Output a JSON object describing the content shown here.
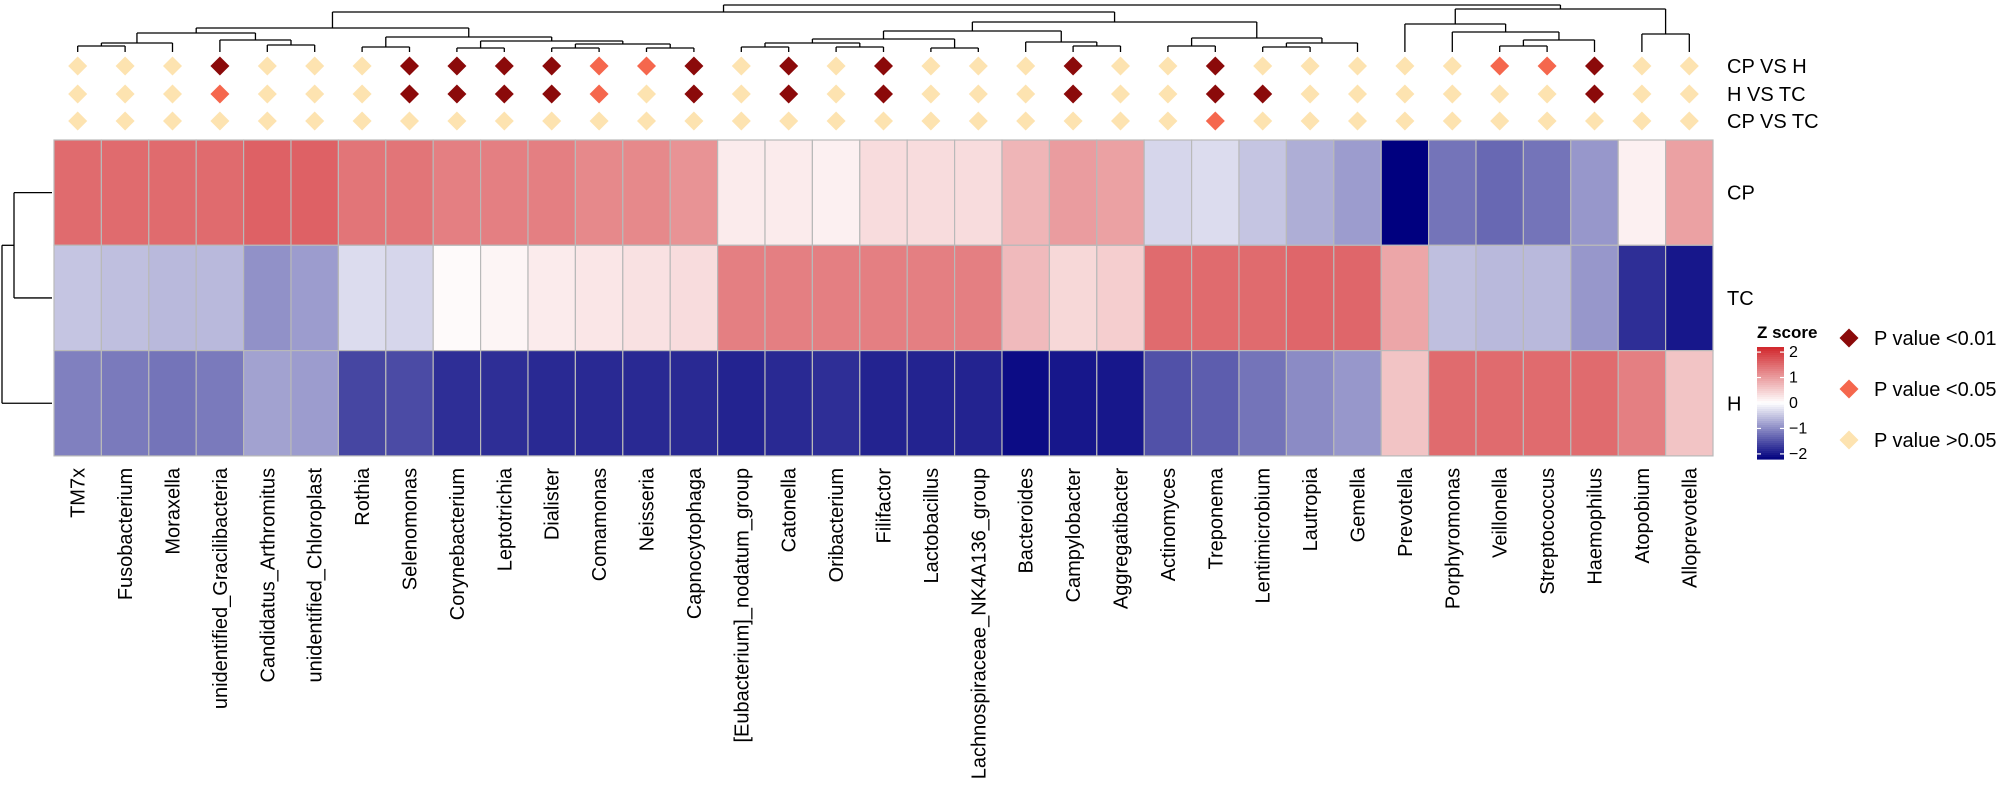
{
  "chart_data": {
    "type": "heatmap",
    "title": "",
    "columns": [
      "TM7x",
      "Fusobacterium",
      "Moraxella",
      "unidentified_Gracilibacteria",
      "Candidatus_Arthromitus",
      "unidentified_Chloroplast",
      "Rothia",
      "Selenomonas",
      "Corynebacterium",
      "Leptotrichia",
      "Dialister",
      "Comamonas",
      "Neisseria",
      "Capnocytophaga",
      "[Eubacterium]_nodatum_group",
      "Catonella",
      "Oribacterium",
      "Filifactor",
      "Lactobacillus",
      "Lachnospiraceae_NK4A136_group",
      "Bacteroides",
      "Campylobacter",
      "Aggregatibacter",
      "Actinomyces",
      "Treponema",
      "Lentimicrobium",
      "Lautropia",
      "Gemella",
      "Prevotella",
      "Porphyromonas",
      "Veillonella",
      "Streptococcus",
      "Haemophilus",
      "Atopobium",
      "Alloprevotella"
    ],
    "rows": [
      "CP",
      "TC",
      "H"
    ],
    "values": [
      [
        1.5,
        1.5,
        1.5,
        1.5,
        1.6,
        1.6,
        1.4,
        1.4,
        1.3,
        1.3,
        1.3,
        1.2,
        1.2,
        1.1,
        0.2,
        0.2,
        0.15,
        0.35,
        0.35,
        0.35,
        0.75,
        1.0,
        0.95,
        -0.35,
        -0.3,
        -0.5,
        -0.7,
        -0.85,
        -2.2,
        -1.2,
        -1.3,
        -1.2,
        -0.9,
        0.15,
        0.95
      ],
      [
        -0.5,
        -0.55,
        -0.6,
        -0.6,
        -0.95,
        -0.85,
        -0.3,
        -0.35,
        0.05,
        0.1,
        0.2,
        0.25,
        0.3,
        0.35,
        1.3,
        1.3,
        1.3,
        1.3,
        1.3,
        1.3,
        0.7,
        0.4,
        0.5,
        1.5,
        1.5,
        1.5,
        1.55,
        1.55,
        0.9,
        -0.55,
        -0.6,
        -0.6,
        -0.9,
        -1.8,
        -2.0
      ],
      [
        -1.1,
        -1.15,
        -1.2,
        -1.15,
        -0.8,
        -0.85,
        -1.6,
        -1.55,
        -1.8,
        -1.8,
        -1.85,
        -1.85,
        -1.85,
        -1.85,
        -1.9,
        -1.85,
        -1.8,
        -1.9,
        -1.9,
        -1.9,
        -2.1,
        -2.0,
        -2.0,
        -1.5,
        -1.4,
        -1.2,
        -1.0,
        -0.9,
        0.6,
        1.5,
        1.5,
        1.5,
        1.5,
        1.3,
        0.6
      ]
    ],
    "annotation_rows": [
      "CP VS H",
      "H VS TC",
      "CP VS TC"
    ],
    "annotations": [
      [
        "ns",
        "ns",
        "ns",
        "p01",
        "ns",
        "ns",
        "ns",
        "p01",
        "p01",
        "p01",
        "p01",
        "p05",
        "p05",
        "p01",
        "ns",
        "p01",
        "ns",
        "p01",
        "ns",
        "ns",
        "ns",
        "p01",
        "ns",
        "ns",
        "p01",
        "ns",
        "ns",
        "ns",
        "ns",
        "ns",
        "p05",
        "p05",
        "p01",
        "ns",
        "ns"
      ],
      [
        "ns",
        "ns",
        "ns",
        "p05",
        "ns",
        "ns",
        "ns",
        "p01",
        "p01",
        "p01",
        "p01",
        "p05",
        "ns",
        "p01",
        "ns",
        "p01",
        "ns",
        "p01",
        "ns",
        "ns",
        "ns",
        "p01",
        "ns",
        "ns",
        "p01",
        "p01",
        "ns",
        "ns",
        "ns",
        "ns",
        "ns",
        "ns",
        "p01",
        "ns",
        "ns"
      ],
      [
        "ns",
        "ns",
        "ns",
        "ns",
        "ns",
        "ns",
        "ns",
        "ns",
        "ns",
        "ns",
        "ns",
        "ns",
        "ns",
        "ns",
        "ns",
        "ns",
        "ns",
        "ns",
        "ns",
        "ns",
        "ns",
        "ns",
        "ns",
        "ns",
        "p05",
        "ns",
        "ns",
        "ns",
        "ns",
        "ns",
        "ns",
        "ns",
        "ns",
        "ns",
        "ns"
      ]
    ],
    "legend": {
      "title": "Z score",
      "ticks": [
        "2",
        "1",
        "0",
        "−1",
        "−2"
      ],
      "tick_values": [
        2,
        1,
        0,
        -1,
        -2
      ],
      "significance": [
        {
          "key": "p01",
          "label": "P value <0.01",
          "color": "#8b0a0a"
        },
        {
          "key": "p05",
          "label": "P value <0.05",
          "color": "#f5674d"
        },
        {
          "key": "ns",
          "label": "P value >0.05",
          "color": "#fde3b0"
        }
      ]
    },
    "color_scale": {
      "low": "#00007f",
      "mid": "#ffffff",
      "high": "#d1262b",
      "min": -2.2,
      "max": 2.2
    },
    "grid_color": "#b9b9b9",
    "dendrogram": "hierarchical clustering on rows and columns (tree lines drawn)"
  }
}
